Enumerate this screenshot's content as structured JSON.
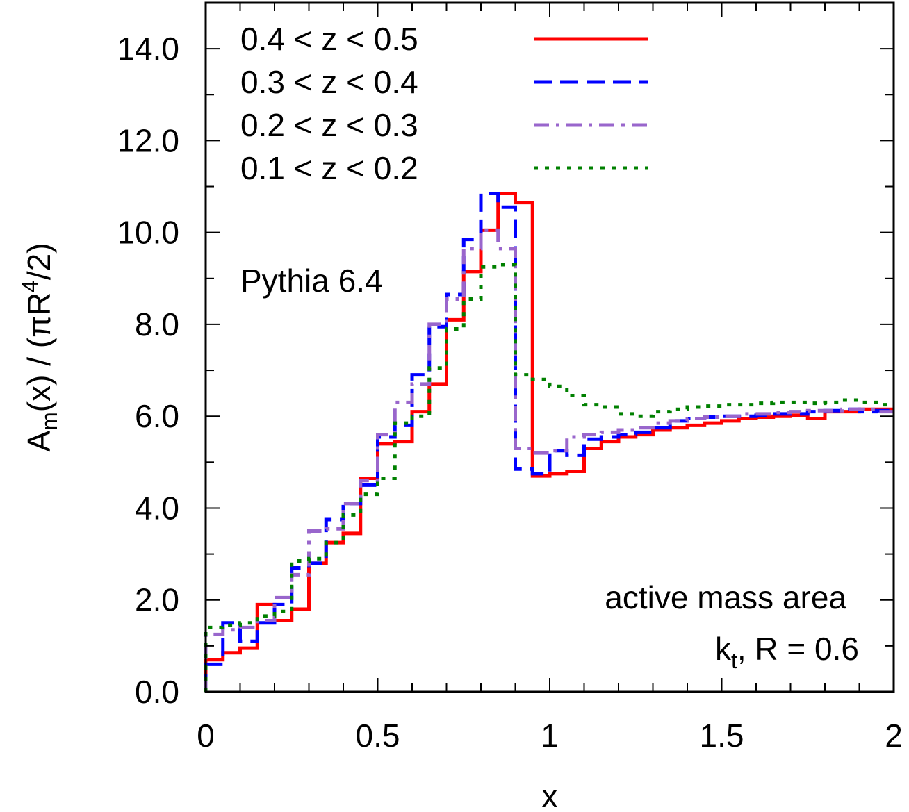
{
  "chart_data": {
    "type": "line",
    "step": true,
    "xlabel": "x",
    "ylabel_parts": {
      "main": "A",
      "sub": "m",
      "mid": "(x) / (πR",
      "sup": "4",
      "end": "/2)"
    },
    "xlim": [
      0,
      2
    ],
    "ylim": [
      0,
      15
    ],
    "xticks": [
      {
        "value": 0,
        "label": "0"
      },
      {
        "value": 0.5,
        "label": "0.5"
      },
      {
        "value": 1,
        "label": "1"
      },
      {
        "value": 1.5,
        "label": "1.5"
      },
      {
        "value": 2,
        "label": "2"
      }
    ],
    "yticks": [
      {
        "value": 0,
        "label": "0.0"
      },
      {
        "value": 2,
        "label": "2.0"
      },
      {
        "value": 4,
        "label": "4.0"
      },
      {
        "value": 6,
        "label": "6.0"
      },
      {
        "value": 8,
        "label": "8.0"
      },
      {
        "value": 10,
        "label": "10.0"
      },
      {
        "value": 12,
        "label": "12.0"
      },
      {
        "value": 14,
        "label": "14.0"
      }
    ],
    "grid": false,
    "legend_position": "top-left",
    "annotations": {
      "generator": "Pythia 6.4",
      "line1": "active mass area",
      "line2_main": "k",
      "line2_sub": "t",
      "line2_rest": ", R = 0.6"
    },
    "bin_width": 0.05,
    "bins_start": 0,
    "series": [
      {
        "name": "0.4 < z < 0.5",
        "color": "#ff0000",
        "dash": "solid",
        "values": [
          0.7,
          0.85,
          0.95,
          1.9,
          1.55,
          1.8,
          2.8,
          3.25,
          3.45,
          4.65,
          5.4,
          5.45,
          6.1,
          6.7,
          8.1,
          9.15,
          10.05,
          10.85,
          10.65,
          4.7,
          4.75,
          4.8,
          5.3,
          5.45,
          5.55,
          5.6,
          5.7,
          5.75,
          5.8,
          5.85,
          5.9,
          5.95,
          5.98,
          6.0,
          6.02,
          5.95,
          6.1,
          6.1,
          6.15,
          6.15
        ]
      },
      {
        "name": "0.3 < z < 0.4",
        "color": "#0000ff",
        "dash": "dashed",
        "values": [
          0.6,
          1.5,
          1.1,
          1.5,
          1.9,
          2.7,
          2.8,
          3.75,
          4.1,
          4.5,
          5.55,
          5.8,
          6.9,
          7.95,
          8.65,
          9.85,
          10.85,
          10.55,
          4.85,
          4.75,
          5.25,
          5.15,
          5.5,
          5.55,
          5.6,
          5.65,
          5.75,
          5.9,
          5.95,
          5.98,
          6.0,
          6.0,
          6.02,
          6.05,
          6.05,
          6.1,
          6.12,
          6.15,
          6.1,
          6.12
        ]
      },
      {
        "name": "0.2 < z < 0.3",
        "color": "#9966cc",
        "dash": "dash-dot",
        "values": [
          1.25,
          1.35,
          1.4,
          1.55,
          2.05,
          2.55,
          3.5,
          3.55,
          4.1,
          4.6,
          5.6,
          6.3,
          6.7,
          8.0,
          8.55,
          9.65,
          10.05,
          9.65,
          5.3,
          5.2,
          5.25,
          5.55,
          5.6,
          5.65,
          5.7,
          5.75,
          5.85,
          5.9,
          5.95,
          5.98,
          6.0,
          6.05,
          6.05,
          6.08,
          6.1,
          6.12,
          6.12,
          6.15,
          6.15,
          6.1
        ]
      },
      {
        "name": "0.1 < z < 0.2",
        "color": "#008000",
        "dash": "dotted",
        "values": [
          1.4,
          1.45,
          1.5,
          1.65,
          1.75,
          2.85,
          2.9,
          3.25,
          3.85,
          4.3,
          4.65,
          5.85,
          6.0,
          7.05,
          7.9,
          8.55,
          9.25,
          9.3,
          6.9,
          6.8,
          6.65,
          6.45,
          6.25,
          6.2,
          6.05,
          6.0,
          6.1,
          6.15,
          6.2,
          6.22,
          6.25,
          6.25,
          6.28,
          6.3,
          6.3,
          6.28,
          6.3,
          6.35,
          6.3,
          6.25
        ]
      }
    ]
  }
}
